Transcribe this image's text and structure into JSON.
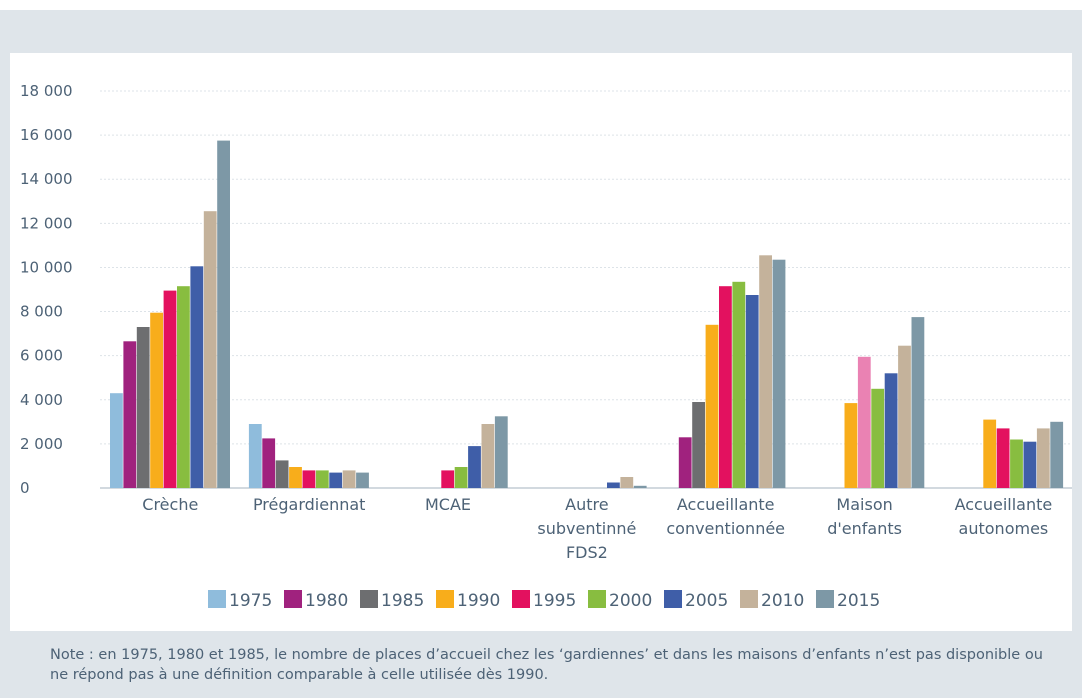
{
  "note": "Note : en 1975, 1980 et 1985, le nombre de places d’accueil chez les ‘gardiennes’ et dans les maisons d’enfants n’est pas disponible ou ne répond pas à une définition comparable à celle utilisée dès 1990.",
  "chart_data": {
    "type": "bar",
    "title": "",
    "xlabel": "",
    "ylabel": "",
    "ylim": [
      0,
      19000
    ],
    "yticks": [
      0,
      2000,
      4000,
      6000,
      8000,
      10000,
      12000,
      14000,
      16000,
      18000
    ],
    "ytick_labels": [
      "0",
      "2 000",
      "4 000",
      "6 000",
      "8 000",
      "10 000",
      "12 000",
      "14 000",
      "16 000",
      "18 000"
    ],
    "grid": true,
    "legend_position": "bottom",
    "categories": [
      [
        "Crèche"
      ],
      [
        "Prégardiennat"
      ],
      [
        "MCAE"
      ],
      [
        "Autre",
        "subventinné",
        "FDS2"
      ],
      [
        "Accueillante",
        "conventionnée"
      ],
      [
        "Maison",
        "d'enfants"
      ],
      [
        "Accueillante",
        "autonomes"
      ]
    ],
    "series": [
      {
        "name": "1975",
        "color": "#8fbcdc",
        "values": [
          4300,
          2900,
          0,
          0,
          0,
          0,
          0
        ]
      },
      {
        "name": "1980",
        "color": "#a0227e",
        "values": [
          6650,
          2250,
          0,
          0,
          2300,
          0,
          0
        ]
      },
      {
        "name": "1985",
        "color": "#6d6e70",
        "values": [
          7300,
          1250,
          0,
          0,
          3900,
          0,
          0
        ]
      },
      {
        "name": "1990",
        "color": "#f8ad1b",
        "values": [
          7950,
          950,
          0,
          0,
          7400,
          3850,
          3100
        ]
      },
      {
        "name": "1995",
        "color": "#e3115f",
        "values": [
          8950,
          800,
          800,
          0,
          9150,
          5950,
          2700
        ]
      },
      {
        "name": "2000",
        "color": "#88bd40",
        "values": [
          9150,
          800,
          950,
          0,
          9350,
          4500,
          2200
        ]
      },
      {
        "name": "2005",
        "color": "#3f5ea8",
        "values": [
          10050,
          700,
          1900,
          250,
          8750,
          5200,
          2100
        ]
      },
      {
        "name": "2010",
        "color": "#c4b29b",
        "values": [
          12550,
          800,
          2900,
          500,
          10550,
          6450,
          2700
        ]
      },
      {
        "name": "2015",
        "color": "#7d98a6",
        "values": [
          15750,
          700,
          3250,
          100,
          10350,
          7750,
          3000
        ]
      }
    ],
    "highlight": {
      "series": "1995",
      "category_index": 5,
      "color": "#ea82b3"
    }
  }
}
